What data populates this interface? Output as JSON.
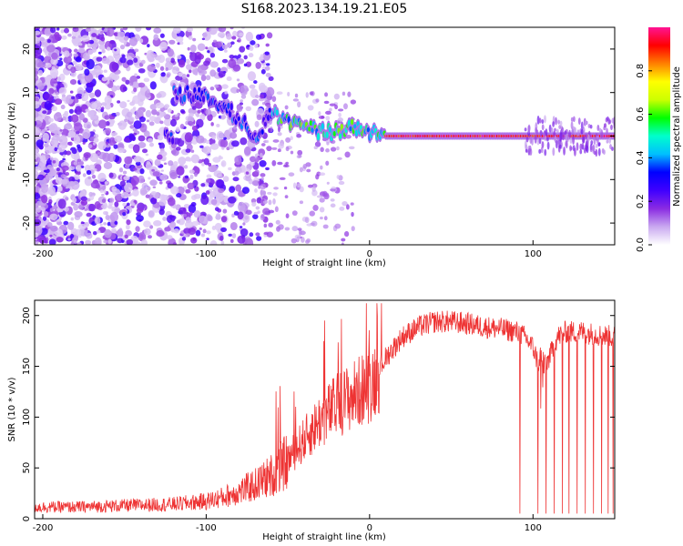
{
  "figure_title": "S168.2023.134.19.21.E05",
  "chart_data": [
    {
      "type": "heatmap",
      "title": "S168.2023.134.19.21.E05",
      "xlabel": "Height of straight line (km)",
      "ylabel": "Frequency (Hz)",
      "xlim": [
        -205,
        150
      ],
      "ylim": [
        -25,
        25
      ],
      "xticks": [
        -200,
        -100,
        0,
        100
      ],
      "yticks": [
        -20,
        -10,
        0,
        10,
        20
      ],
      "grid": false,
      "colorbar": {
        "label": "Normalized spectral amplitude",
        "range": [
          0,
          1
        ],
        "ticks": [
          0.0,
          0.2,
          0.4,
          0.6,
          0.8
        ],
        "tick_labels": [
          "0.0",
          "0.2",
          "0.4",
          "0.6",
          "0.8"
        ],
        "colormap": [
          "#ffffff",
          "#c9a8f0",
          "#8a2be2",
          "#3f00ff",
          "#0000ff",
          "#00bfff",
          "#00ffcc",
          "#00ff00",
          "#ccff00",
          "#ffff00",
          "#ff8000",
          "#ff0000",
          "#ff1493"
        ]
      },
      "ridge": {
        "description_points_x": [
          -120,
          -100,
          -90,
          -80,
          -70,
          -60,
          -50,
          -40,
          -30,
          -20,
          -10,
          0,
          10,
          20,
          100,
          150
        ],
        "description_points_y": [
          10,
          9,
          7,
          4,
          0,
          5,
          3,
          2,
          1,
          1,
          2,
          1,
          0,
          0,
          0,
          0
        ]
      }
    },
    {
      "type": "line",
      "xlabel": "Height of straight line (km)",
      "ylabel": "SNR (10 * v/v)",
      "xlim": [
        -205,
        150
      ],
      "ylim": [
        0,
        215
      ],
      "xticks": [
        -200,
        -100,
        0,
        100
      ],
      "yticks": [
        0,
        50,
        100,
        150,
        200
      ],
      "grid": false,
      "series": [
        {
          "color": "#ee3333",
          "x": [
            -205,
            -180,
            -160,
            -140,
            -120,
            -100,
            -90,
            -80,
            -70,
            -60,
            -50,
            -40,
            -30,
            -20,
            -10,
            0,
            10,
            20,
            30,
            40,
            50,
            60,
            70,
            80,
            90,
            95,
            100,
            105,
            110,
            115,
            120,
            130,
            140,
            150
          ],
          "y": [
            12,
            12,
            13,
            14,
            15,
            18,
            22,
            28,
            35,
            45,
            60,
            80,
            100,
            115,
            125,
            135,
            160,
            180,
            190,
            195,
            195,
            193,
            190,
            188,
            185,
            180,
            170,
            145,
            160,
            180,
            185,
            185,
            182,
            180
          ],
          "dropouts_x": [
            92,
            103,
            108,
            113,
            118,
            122,
            127,
            132,
            137,
            142,
            146,
            149
          ]
        }
      ]
    }
  ]
}
